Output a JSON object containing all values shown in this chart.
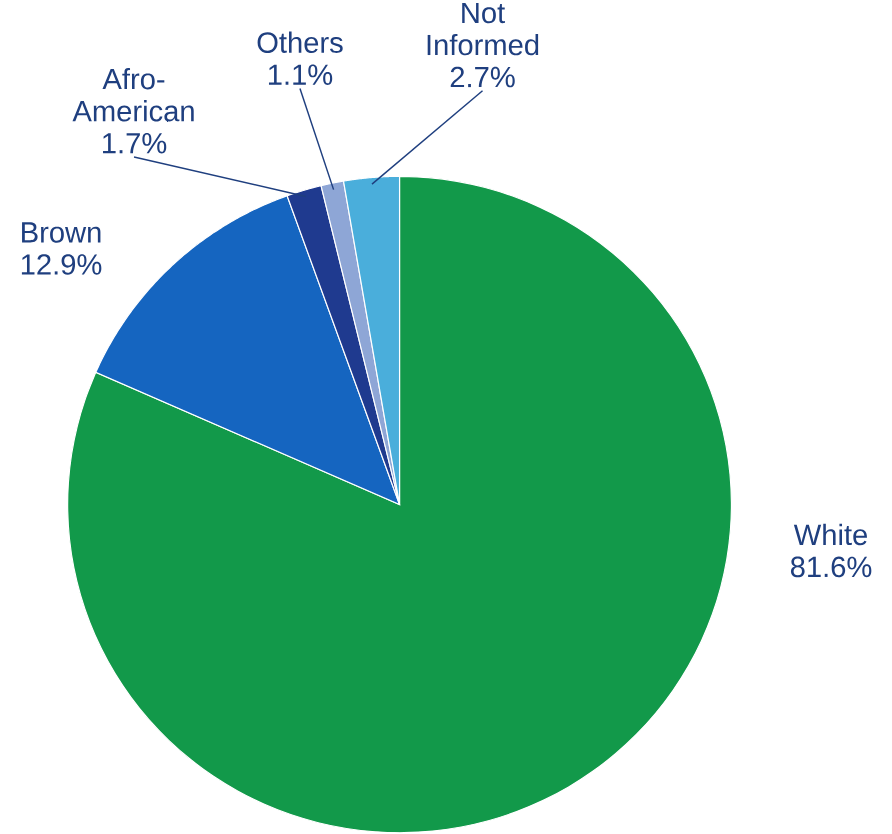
{
  "chart_data": {
    "type": "pie",
    "categories": [
      "White",
      "Brown",
      "Afro-American",
      "Others",
      "Not Informed"
    ],
    "values": [
      81.6,
      12.9,
      1.7,
      1.1,
      2.7
    ],
    "value_labels": [
      "81.6%",
      "12.9%",
      "1.7%",
      "1.1%",
      "2.7%"
    ],
    "colors": [
      "#12994a",
      "#1565c0",
      "#1f3a8f",
      "#8ea6d6",
      "#4aaedb"
    ]
  }
}
